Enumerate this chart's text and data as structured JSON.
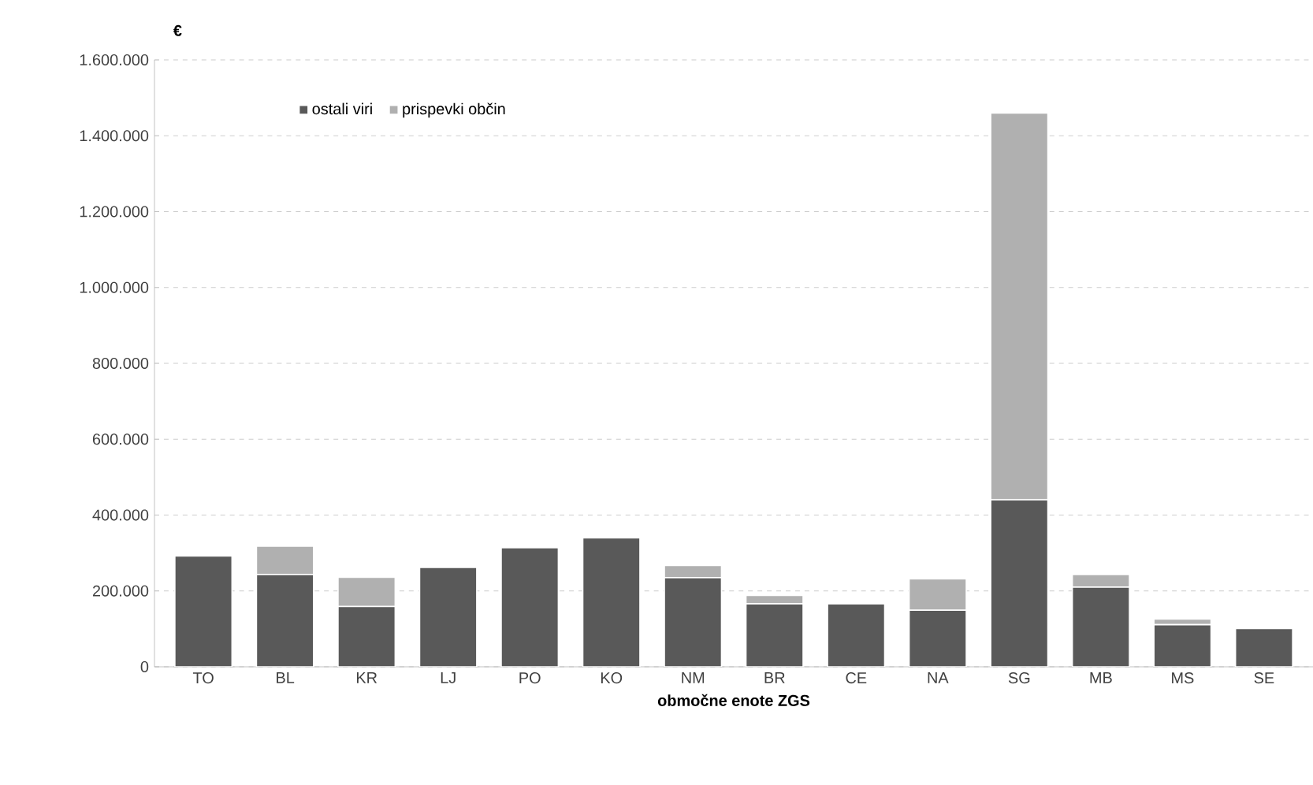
{
  "chart_data": {
    "type": "bar",
    "stacked": true,
    "ylabel": "€",
    "xlabel": "območne enote ZGS",
    "categories": [
      "TO",
      "BL",
      "KR",
      "LJ",
      "PO",
      "KO",
      "NM",
      "BR",
      "CE",
      "NA",
      "SG",
      "MB",
      "MS",
      "SE"
    ],
    "series": [
      {
        "name": "ostali viri",
        "color": "#595959",
        "values": [
          292000,
          243000,
          159000,
          262000,
          314000,
          340000,
          235000,
          166000,
          166000,
          149000,
          440000,
          210000,
          111000,
          101000
        ]
      },
      {
        "name": "prispevki občin",
        "color": "#b0b0b0",
        "values": [
          0,
          75000,
          77000,
          0,
          0,
          0,
          32000,
          22000,
          0,
          83000,
          1020000,
          33000,
          15000,
          0
        ]
      }
    ],
    "ylim": [
      0,
      1600000
    ],
    "yticks": [
      0,
      {
        "value": 200000,
        "label": "200.000"
      },
      {
        "value": 400000,
        "label": "400.000"
      },
      {
        "value": 600000,
        "label": "600.000"
      },
      {
        "value": 800000,
        "label": "800.000"
      },
      {
        "value": 1000000,
        "label": "1.000.000"
      },
      {
        "value": 1200000,
        "label": "1.200.000"
      },
      {
        "value": 1400000,
        "label": "1.400.000"
      },
      {
        "value": 1600000,
        "label": "1.600.000"
      }
    ],
    "grid": "y",
    "legend": "top left"
  }
}
